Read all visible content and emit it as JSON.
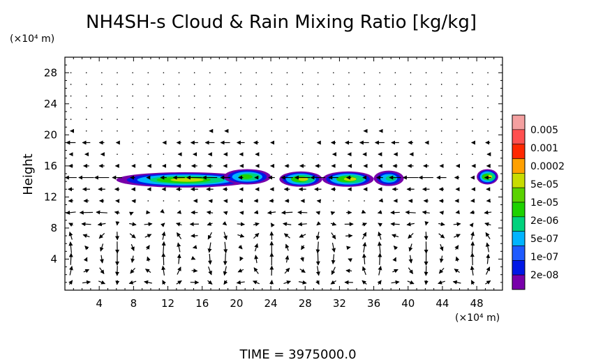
{
  "chart_data": {
    "type": "heatmap",
    "title": "NH4SH-s Cloud & Rain Mixing Ratio [kg/kg]",
    "ylabel": "Height",
    "x_unit": "(×10⁴ m)",
    "y_unit": "(×10⁴ m)",
    "xlim": [
      0,
      51
    ],
    "ylim": [
      0,
      30
    ],
    "x_ticks": [
      "4",
      "8",
      "12",
      "16",
      "20",
      "24",
      "28",
      "32",
      "36",
      "40",
      "44",
      "48"
    ],
    "y_ticks": [
      "4",
      "8",
      "12",
      "16",
      "20",
      "24",
      "28"
    ],
    "legend_levels": [
      "0.005",
      "0.001",
      "0.0002",
      "5e-05",
      "1e-05",
      "2e-06",
      "5e-07",
      "1e-07",
      "2e-08"
    ],
    "legend_colors": [
      "#f4a0a0",
      "#ff5050",
      "#ff2800",
      "#ffa000",
      "#c8dc00",
      "#5ad200",
      "#1ed200",
      "#00d27d",
      "#00b4ff",
      "#1e5aff",
      "#0018e6",
      "#7800aa"
    ],
    "cloud_regions": [
      {
        "x": [
          6,
          22
        ],
        "y_center": 14.2,
        "peak": "5e-05"
      },
      {
        "x": [
          18.5,
          24
        ],
        "y_center": 14.6,
        "peak": "1e-05"
      },
      {
        "x": [
          25,
          30
        ],
        "y_center": 14.3,
        "peak": "5e-05"
      },
      {
        "x": [
          30,
          36
        ],
        "y_center": 14.3,
        "peak": "5e-05"
      },
      {
        "x": [
          36,
          39.5
        ],
        "y_center": 14.4,
        "peak": "2e-06"
      },
      {
        "x": [
          48,
          50.5
        ],
        "y_center": 14.6,
        "peak": "5e-05"
      }
    ],
    "vector_field": "wind vectors over full domain",
    "time_label": "TIME  =  3975000.0"
  }
}
